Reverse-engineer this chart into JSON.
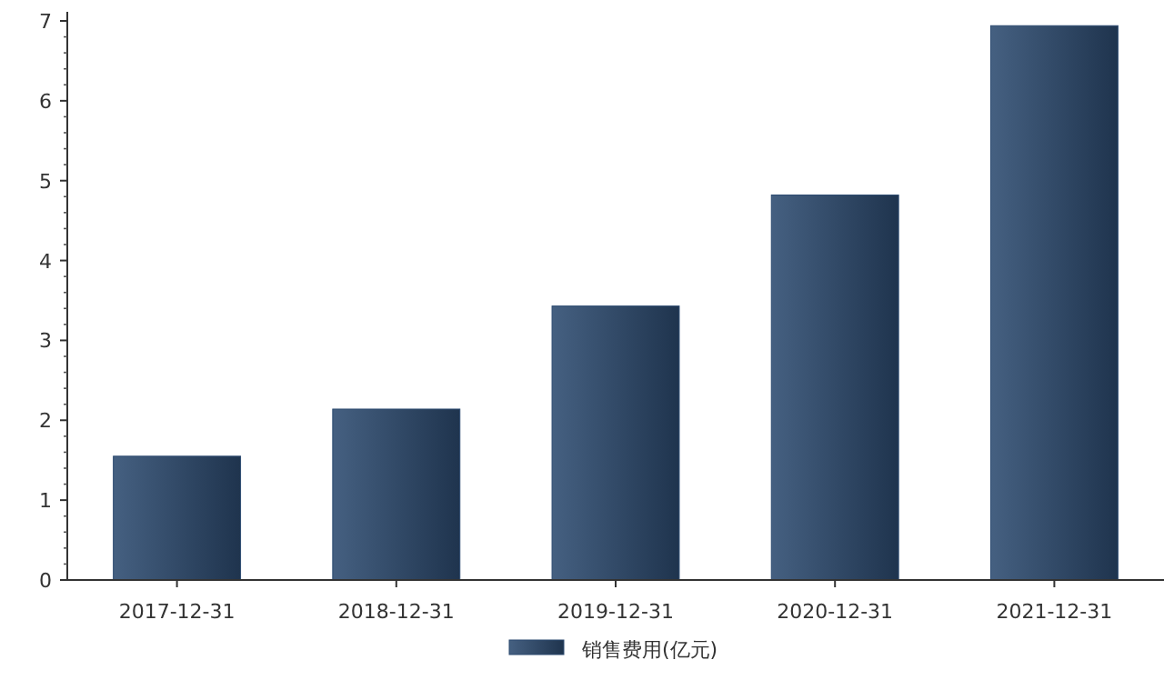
{
  "chart_data": {
    "type": "bar",
    "categories": [
      "2017-12-31",
      "2018-12-31",
      "2019-12-31",
      "2020-12-31",
      "2021-12-31"
    ],
    "series": [
      {
        "name": "销售费用(亿元)",
        "color": "#2c4a70",
        "values": [
          1.55,
          2.14,
          3.43,
          4.82,
          6.94
        ]
      }
    ],
    "ylim": [
      0,
      7
    ],
    "yticks": [
      0,
      1,
      2,
      3,
      4,
      5,
      6,
      7
    ],
    "grid": false,
    "legend": "bottom"
  }
}
